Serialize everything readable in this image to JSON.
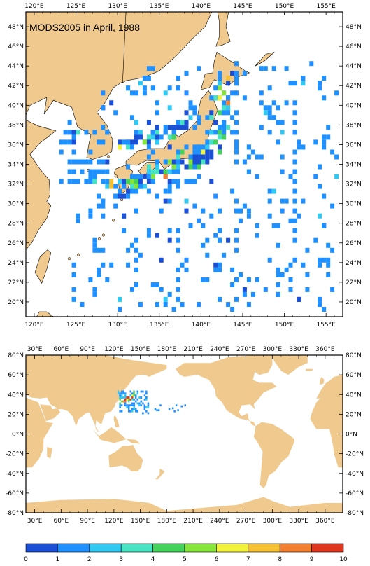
{
  "title": "MODS2005 in April, 1988",
  "colors": {
    "land": "#f0c98f",
    "ocean": "#ffffff",
    "frame": "#000000",
    "palette": [
      "#1a4fd6",
      "#1f90ff",
      "#31c8f2",
      "#47e3c2",
      "#43d35a",
      "#86e53b",
      "#f2f23b",
      "#f6c233",
      "#f28030",
      "#e0351f"
    ]
  },
  "top_map": {
    "x_ticks": [
      "120°E",
      "125°E",
      "130°E",
      "135°E",
      "140°E",
      "145°E",
      "150°E",
      "155°E"
    ],
    "y_ticks": [
      "48°N",
      "46°N",
      "44°N",
      "42°N",
      "40°N",
      "38°N",
      "36°N",
      "34°N",
      "32°N",
      "30°N",
      "28°N",
      "26°N",
      "24°N",
      "22°N",
      "20°N"
    ],
    "lon_range": [
      119.0,
      157.0
    ],
    "lat_range": [
      18.5,
      49.5
    ]
  },
  "bottom_map": {
    "x_ticks": [
      "30°E",
      "60°E",
      "90°E",
      "120°E",
      "150°E",
      "180°E",
      "210°E",
      "240°E",
      "270°E",
      "300°E",
      "330°E",
      "360°E"
    ],
    "y_ticks": [
      "80°N",
      "60°N",
      "40°N",
      "20°N",
      "0°N",
      "-20°N",
      "-40°N",
      "-60°N",
      "-80°N"
    ],
    "lon_range": [
      20,
      380
    ],
    "lat_range": [
      -80,
      80
    ]
  },
  "colorbar": {
    "labels": [
      "0",
      "1",
      "2",
      "3",
      "4",
      "5",
      "6",
      "7",
      "8",
      "9",
      "10"
    ]
  }
}
